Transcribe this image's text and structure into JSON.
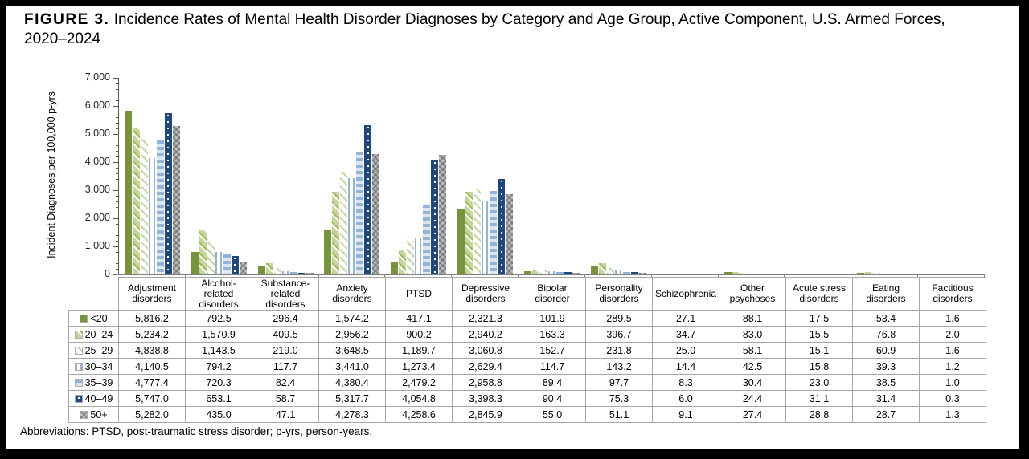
{
  "figure": {
    "label": "FIGURE 3.",
    "title_line1": "Incidence Rates of Mental Health Disorder Diagnoses by Category and Age Group, Active Component, U.S. Armed Forces,",
    "title_line2": "2020–2024",
    "footnote": "Abbreviations: PTSD, post-traumatic stress disorder; p-yrs, person-years."
  },
  "chart_data": {
    "type": "bar",
    "title": "Incidence Rates of Mental Health Disorder Diagnoses by Category and Age Group, Active Component, U.S. Armed Forces, 2020–2024",
    "xlabel": "",
    "ylabel": "Incident Diagnoses per 100,000 p-yrs",
    "ylim": [
      0,
      7000
    ],
    "ytick_step": 1000,
    "ytick_labels": [
      "0",
      "1,000",
      "2,000",
      "3,000",
      "4,000",
      "5,000",
      "6,000",
      "7,000"
    ],
    "grid": false,
    "legend_position": "left-column-of-data-table",
    "value_format": "comma-thousands, 1 decimal place",
    "categories": [
      "Adjustment disorders",
      "Alcohol-related disorders",
      "Substance-related disorders",
      "Anxiety disorders",
      "PTSD",
      "Depressive disorders",
      "Bipolar disorder",
      "Personality disorders",
      "Schizophrenia",
      "Other psychoses",
      "Acute stress disorders",
      "Eating disorders",
      "Factitious disorders"
    ],
    "series": [
      {
        "name": "<20",
        "pattern": "solid-dark-olive-green",
        "values": [
          5816.2,
          792.5,
          296.4,
          1574.2,
          417.1,
          2321.3,
          101.9,
          289.5,
          27.1,
          88.1,
          17.5,
          53.4,
          1.6
        ]
      },
      {
        "name": "20–24",
        "pattern": "diagonal-stripe-light-green",
        "values": [
          5234.2,
          1570.9,
          409.5,
          2956.2,
          900.2,
          2940.2,
          163.3,
          396.7,
          34.7,
          83.0,
          15.5,
          76.8,
          2.0
        ]
      },
      {
        "name": "25–29",
        "pattern": "thin-diagonal-pale-green",
        "values": [
          4838.8,
          1143.5,
          219.0,
          3648.5,
          1189.7,
          3060.8,
          152.7,
          231.8,
          25.0,
          58.1,
          15.1,
          60.9,
          1.6
        ]
      },
      {
        "name": "30–34",
        "pattern": "vertical-stripe-light-blue",
        "values": [
          4140.5,
          794.2,
          117.7,
          3441.0,
          1273.4,
          2629.4,
          114.7,
          143.2,
          14.4,
          42.5,
          15.8,
          39.3,
          1.2
        ]
      },
      {
        "name": "35–39",
        "pattern": "horizontal-stripe-blue",
        "values": [
          4777.4,
          720.3,
          82.4,
          4380.4,
          2479.2,
          2958.8,
          89.4,
          97.7,
          8.3,
          30.4,
          23.0,
          38.5,
          1.0
        ]
      },
      {
        "name": "40–49",
        "pattern": "solid-navy-white-dotted-line",
        "values": [
          5747.0,
          653.1,
          58.7,
          5317.7,
          4054.8,
          3398.3,
          90.4,
          75.3,
          6.0,
          24.4,
          31.1,
          31.4,
          0.3
        ]
      },
      {
        "name": "50+",
        "pattern": "gray-diagonal-crosshatch",
        "values": [
          5282.0,
          435.0,
          47.1,
          4278.3,
          4258.6,
          2845.9,
          55.0,
          51.1,
          9.1,
          27.4,
          28.8,
          28.7,
          1.3
        ]
      }
    ],
    "colors": {
      "dark_green": "#77933C",
      "light_green": "#C3D69B",
      "medium_green": "#9BBB59",
      "stripe_blue": "#95B3D7",
      "pale_blue": "#DCE6F1",
      "navy": "#1F497D",
      "gray_fill": "#BFBFBF",
      "hatch_gray": "#7F7F7F",
      "axis_gray": "#808080",
      "table_border_gray": "#A6A6A6"
    }
  }
}
